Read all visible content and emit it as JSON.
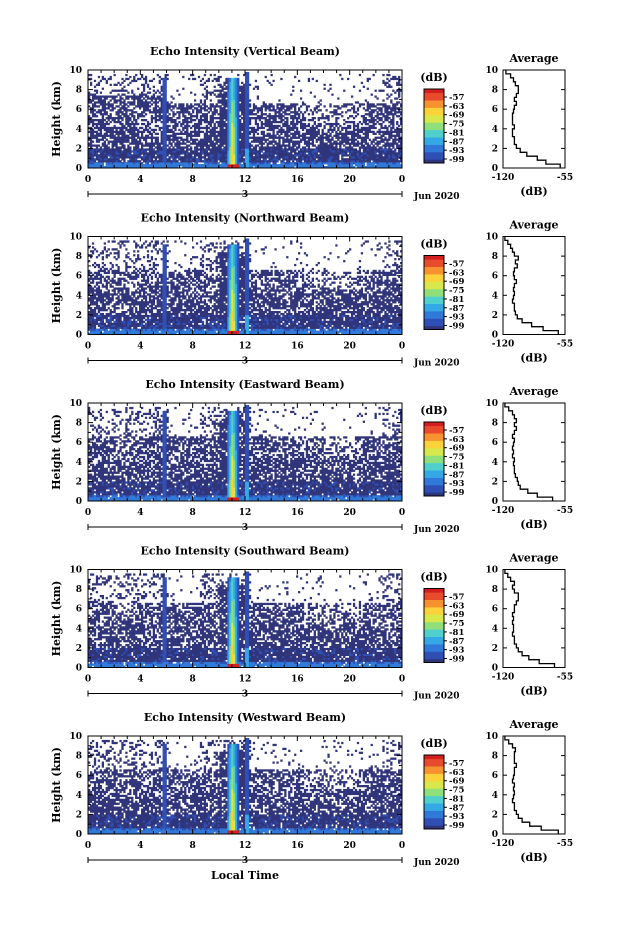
{
  "colors": {
    "background": "#30347a",
    "scale": [
      "#30347a",
      "#2f4fb5",
      "#2f79d9",
      "#35a8e6",
      "#4fd0cc",
      "#8fe07a",
      "#d8e84a",
      "#fbd23a",
      "#f8922e",
      "#e84b2b",
      "#d21f1f"
    ]
  },
  "chart_data": [
    {
      "type": "heatmap",
      "title": "Echo Intensity (Vertical Beam)",
      "ylabel": "Height (km)",
      "xlim": [
        0,
        24
      ],
      "ylim": [
        0,
        10
      ],
      "x_ticks": [
        "0",
        "4",
        "8",
        "12",
        "16",
        "20",
        "0"
      ],
      "y_ticks": [
        "0",
        "2",
        "4",
        "6",
        "8",
        "10"
      ],
      "date_marker": "3",
      "date_label": "Jun 2020",
      "colorbar": {
        "unit": "(dB)",
        "labels": [
          "-57",
          "-63",
          "-69",
          "-75",
          "-81",
          "-87",
          "-93",
          "-99"
        ]
      },
      "profile": {
        "title": "Average",
        "xlabel": "(dB)",
        "x_ticks": [
          "-120",
          "-55"
        ],
        "y_ticks": [
          "0",
          "2",
          "4",
          "6",
          "8",
          "10"
        ],
        "xlim": [
          -120,
          -55
        ],
        "ylim": [
          0,
          10
        ],
        "heights": [
          0.2,
          0.6,
          1.0,
          1.4,
          1.8,
          2.2,
          2.6,
          3.0,
          3.4,
          3.8,
          4.2,
          4.6,
          5.0,
          5.4,
          5.8,
          6.2,
          6.6,
          7.0,
          7.4,
          7.8,
          8.2,
          8.6,
          9.0,
          9.4,
          9.8
        ],
        "values": [
          -60,
          -75,
          -84,
          -95,
          -102,
          -106,
          -108,
          -108,
          -110,
          -110,
          -108,
          -110,
          -110,
          -110,
          -109,
          -108,
          -106,
          -108,
          -106,
          -104,
          -104,
          -107,
          -109,
          -112,
          -117
        ]
      }
    },
    {
      "type": "heatmap",
      "title": "Echo Intensity (Northward Beam)",
      "ylabel": "Height (km)",
      "xlim": [
        0,
        24
      ],
      "ylim": [
        0,
        10
      ],
      "x_ticks": [
        "0",
        "4",
        "8",
        "12",
        "16",
        "20",
        "0"
      ],
      "y_ticks": [
        "0",
        "2",
        "4",
        "6",
        "8",
        "10"
      ],
      "date_marker": "3",
      "date_label": "Jun 2020",
      "colorbar": {
        "unit": "(dB)",
        "labels": [
          "-57",
          "-63",
          "-69",
          "-75",
          "-81",
          "-87",
          "-93",
          "-99"
        ]
      },
      "profile": {
        "title": "Average",
        "xlabel": "(dB)",
        "x_ticks": [
          "-120",
          "-55"
        ],
        "y_ticks": [
          "0",
          "2",
          "4",
          "6",
          "8",
          "10"
        ],
        "xlim": [
          -120,
          -55
        ],
        "ylim": [
          0,
          10
        ],
        "heights": [
          0.2,
          0.6,
          1.0,
          1.4,
          1.8,
          2.2,
          2.6,
          3.0,
          3.4,
          3.8,
          4.2,
          4.6,
          5.0,
          5.4,
          5.8,
          6.2,
          6.6,
          7.0,
          7.4,
          7.8,
          8.2,
          8.6,
          9.0,
          9.4,
          9.8
        ],
        "values": [
          -62,
          -78,
          -90,
          -100,
          -105,
          -107,
          -108,
          -108,
          -110,
          -109,
          -108,
          -109,
          -108,
          -106,
          -108,
          -109,
          -108,
          -105,
          -107,
          -104,
          -108,
          -110,
          -112,
          -115,
          -118
        ]
      }
    },
    {
      "type": "heatmap",
      "title": "Echo Intensity (Eastward Beam)",
      "ylabel": "Height (km)",
      "xlim": [
        0,
        24
      ],
      "ylim": [
        0,
        10
      ],
      "x_ticks": [
        "0",
        "4",
        "8",
        "12",
        "16",
        "20",
        "0"
      ],
      "y_ticks": [
        "0",
        "2",
        "4",
        "6",
        "8",
        "10"
      ],
      "date_marker": "3",
      "date_label": "Jun 2020",
      "colorbar": {
        "unit": "(dB)",
        "labels": [
          "-57",
          "-63",
          "-69",
          "-75",
          "-81",
          "-87",
          "-93",
          "-99"
        ]
      },
      "profile": {
        "title": "Average",
        "xlabel": "(dB)",
        "x_ticks": [
          "-120",
          "-55"
        ],
        "y_ticks": [
          "0",
          "2",
          "4",
          "6",
          "8",
          "10"
        ],
        "xlim": [
          -120,
          -55
        ],
        "ylim": [
          0,
          10
        ],
        "heights": [
          0.2,
          0.6,
          1.0,
          1.4,
          1.8,
          2.2,
          2.6,
          3.0,
          3.4,
          3.8,
          4.2,
          4.6,
          5.0,
          5.4,
          5.8,
          6.2,
          6.6,
          7.0,
          7.4,
          7.8,
          8.2,
          8.6,
          9.0,
          9.4,
          9.8
        ],
        "values": [
          -68,
          -84,
          -94,
          -102,
          -104,
          -105,
          -107,
          -108,
          -108,
          -109,
          -108,
          -110,
          -109,
          -110,
          -109,
          -108,
          -110,
          -108,
          -106,
          -108,
          -106,
          -108,
          -110,
          -114,
          -118
        ]
      }
    },
    {
      "type": "heatmap",
      "title": "Echo Intensity (Southward Beam)",
      "ylabel": "Height (km)",
      "xlim": [
        0,
        24
      ],
      "ylim": [
        0,
        10
      ],
      "x_ticks": [
        "0",
        "4",
        "8",
        "12",
        "16",
        "20",
        "0"
      ],
      "y_ticks": [
        "0",
        "2",
        "4",
        "6",
        "8",
        "10"
      ],
      "date_marker": "3",
      "date_label": "Jun 2020",
      "colorbar": {
        "unit": "(dB)",
        "labels": [
          "-57",
          "-63",
          "-69",
          "-75",
          "-81",
          "-87",
          "-93",
          "-99"
        ]
      },
      "profile": {
        "title": "Average",
        "xlabel": "(dB)",
        "x_ticks": [
          "-120",
          "-55"
        ],
        "y_ticks": [
          "0",
          "2",
          "4",
          "6",
          "8",
          "10"
        ],
        "xlim": [
          -120,
          -55
        ],
        "ylim": [
          0,
          10
        ],
        "heights": [
          0.2,
          0.6,
          1.0,
          1.4,
          1.8,
          2.2,
          2.6,
          3.0,
          3.4,
          3.8,
          4.2,
          4.6,
          5.0,
          5.4,
          5.8,
          6.2,
          6.6,
          7.0,
          7.4,
          7.8,
          8.2,
          8.6,
          9.0,
          9.4,
          9.8
        ],
        "values": [
          -66,
          -82,
          -93,
          -100,
          -104,
          -106,
          -108,
          -108,
          -110,
          -109,
          -109,
          -110,
          -109,
          -110,
          -108,
          -108,
          -106,
          -104,
          -104,
          -108,
          -110,
          -108,
          -112,
          -115,
          -118
        ]
      }
    },
    {
      "type": "heatmap",
      "title": "Echo Intensity (Westward Beam)",
      "ylabel": "Height (km)",
      "xlabel": "Local Time",
      "xlim": [
        0,
        24
      ],
      "ylim": [
        0,
        10
      ],
      "x_ticks": [
        "0",
        "4",
        "8",
        "12",
        "16",
        "20",
        "0"
      ],
      "y_ticks": [
        "0",
        "2",
        "4",
        "6",
        "8",
        "10"
      ],
      "date_marker": "3",
      "date_label": "Jun 2020",
      "colorbar": {
        "unit": "(dB)",
        "labels": [
          "-57",
          "-63",
          "-69",
          "-75",
          "-81",
          "-87",
          "-93",
          "-99"
        ]
      },
      "profile": {
        "title": "Average",
        "xlabel": "(dB)",
        "x_ticks": [
          "-120",
          "-55"
        ],
        "y_ticks": [
          "0",
          "2",
          "4",
          "6",
          "8",
          "10"
        ],
        "xlim": [
          -120,
          -55
        ],
        "ylim": [
          0,
          10
        ],
        "heights": [
          0.2,
          0.6,
          1.0,
          1.4,
          1.8,
          2.2,
          2.6,
          3.0,
          3.4,
          3.8,
          4.2,
          4.6,
          5.0,
          5.4,
          5.8,
          6.2,
          6.6,
          7.0,
          7.4,
          7.8,
          8.2,
          8.6,
          9.0,
          9.4,
          9.8
        ],
        "values": [
          -62,
          -80,
          -92,
          -100,
          -104,
          -106,
          -108,
          -108,
          -110,
          -109,
          -108,
          -109,
          -108,
          -110,
          -109,
          -108,
          -108,
          -106,
          -108,
          -108,
          -108,
          -107,
          -110,
          -114,
          -118
        ]
      }
    }
  ]
}
